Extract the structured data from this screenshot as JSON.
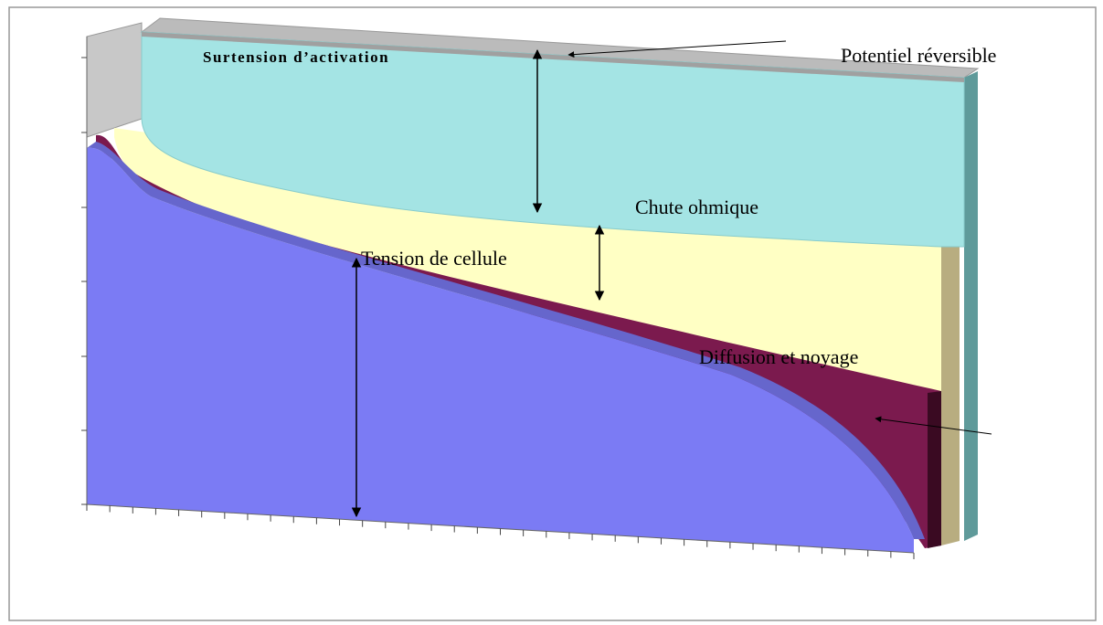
{
  "labels": {
    "activation": "Surtension d’activation",
    "reversible": "Potentiel réversible",
    "ohmic": "Chute ohmique",
    "cell_voltage": "Tension de cellule",
    "diffusion": "Diffusion et noyage"
  }
}
